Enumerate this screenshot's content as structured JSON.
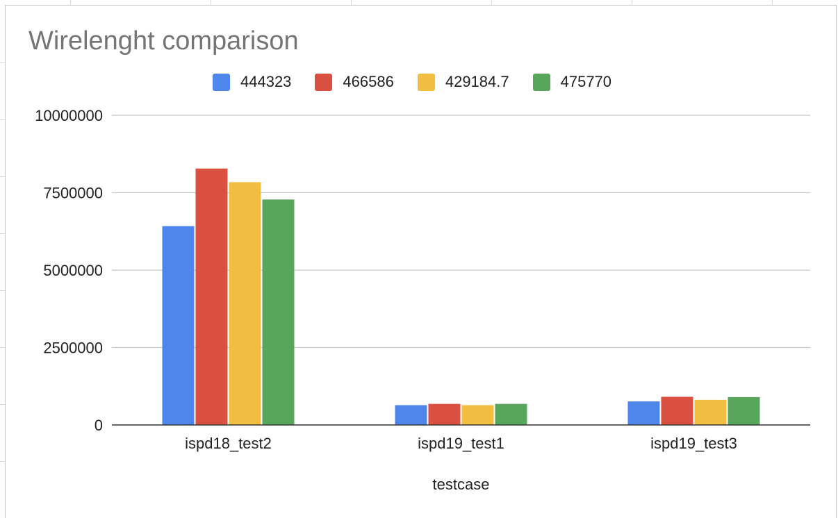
{
  "chart_data": {
    "type": "bar",
    "title": "Wirelenght comparison",
    "xlabel": "testcase",
    "ylabel": "",
    "categories": [
      "ispd18_test2",
      "ispd19_test1",
      "ispd19_test3"
    ],
    "series": [
      {
        "name": "444323",
        "color": "#4f86ec",
        "values": [
          6420000,
          640000,
          760000
        ]
      },
      {
        "name": "466586",
        "color": "#d95040",
        "values": [
          8280000,
          680000,
          910000
        ]
      },
      {
        "name": "429184.7",
        "color": "#f2be42",
        "values": [
          7840000,
          640000,
          810000
        ]
      },
      {
        "name": "475770",
        "color": "#58a65c",
        "values": [
          7280000,
          680000,
          900000
        ]
      }
    ],
    "ylim": [
      0,
      10000000
    ],
    "yticks": [
      "0",
      "2500000",
      "5000000",
      "7500000",
      "10000000"
    ],
    "ytick_values": [
      0,
      2500000,
      5000000,
      7500000,
      10000000
    ],
    "grid": true,
    "legend_position": "top"
  }
}
